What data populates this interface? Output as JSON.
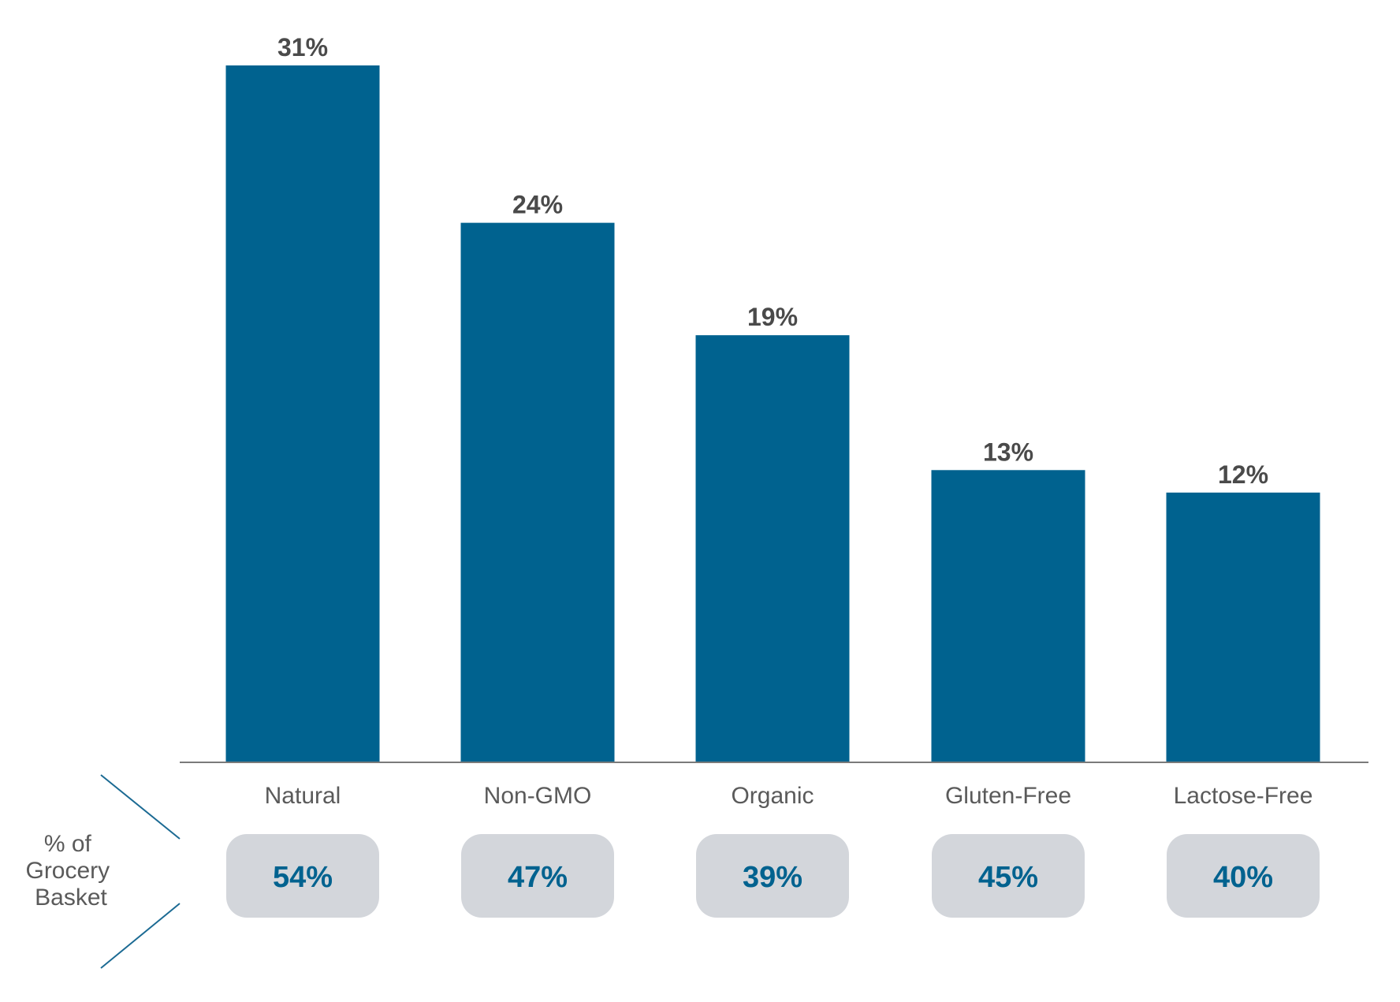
{
  "chart_data": {
    "type": "bar",
    "categories": [
      "Natural",
      "Non-GMO",
      "Organic",
      "Gluten-Free",
      "Lactose-Free"
    ],
    "values": [
      31,
      24,
      19,
      13,
      12
    ],
    "value_labels": [
      "31%",
      "24%",
      "19%",
      "13%",
      "12%"
    ],
    "ylim": [
      0,
      31
    ],
    "grid": false,
    "bar_color": "#00628f",
    "secondary_row": {
      "label_lines": [
        "% of",
        "Grocery",
        "Basket"
      ],
      "values": [
        54,
        47,
        39,
        45,
        40
      ],
      "value_labels": [
        "54%",
        "47%",
        "39%",
        "45%",
        "40%"
      ],
      "box_color": "#d3d6db",
      "text_color": "#00628f"
    }
  }
}
